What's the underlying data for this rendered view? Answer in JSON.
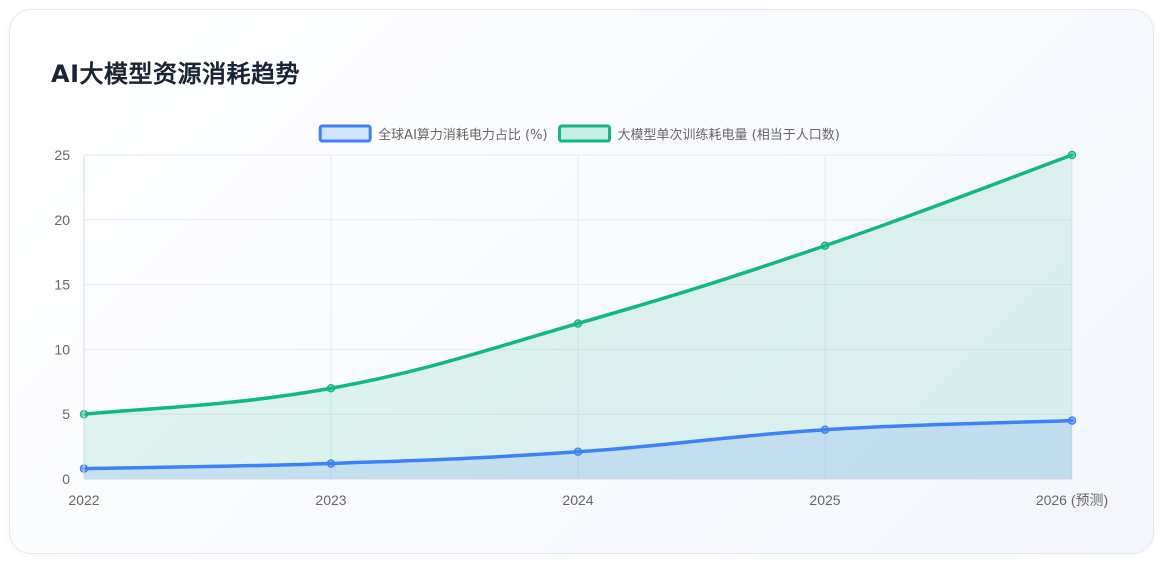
{
  "title": "AI大模型资源消耗趋势",
  "chart_data": {
    "type": "area",
    "categories": [
      "2022",
      "2023",
      "2024",
      "2025",
      "2026 (预测)"
    ],
    "series": [
      {
        "name": "全球AI算力消耗电力占比 (%)",
        "values": [
          0.8,
          1.2,
          2.1,
          3.8,
          4.5
        ],
        "color": "#3b82f6",
        "fill": "rgba(59,130,246,0.15)"
      },
      {
        "name": "大模型单次训练耗电量 (相当于人口数)",
        "values": [
          5,
          7,
          12,
          18,
          25
        ],
        "color": "#10b981",
        "fill": "rgba(16,185,129,0.12)"
      }
    ],
    "ylim": [
      0,
      25
    ],
    "yticks": [
      0,
      5,
      10,
      15,
      20,
      25
    ],
    "grid": true,
    "legend": "top-center",
    "xlabel": "",
    "ylabel": ""
  }
}
